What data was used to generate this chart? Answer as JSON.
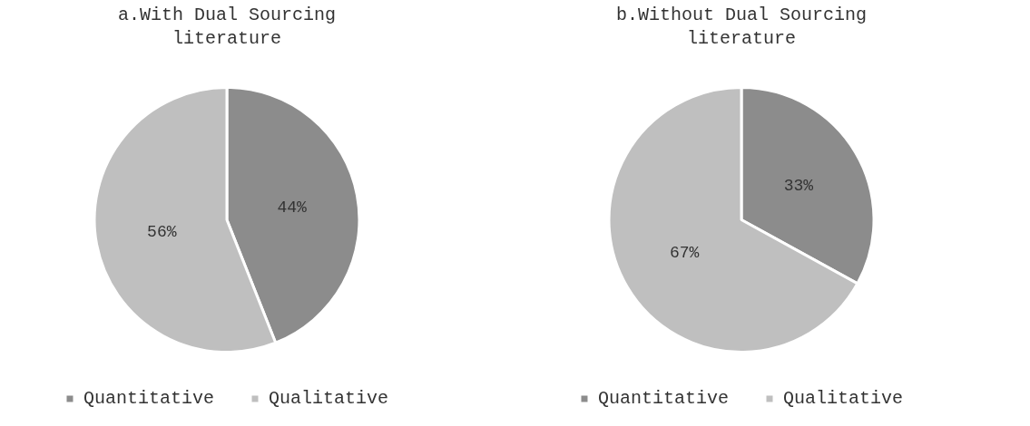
{
  "chart_data": [
    {
      "type": "pie",
      "title": "a.With Dual Sourcing literature",
      "categories": [
        "Quantitative",
        "Qualitative"
      ],
      "values": [
        44,
        56
      ],
      "value_labels": [
        "44%",
        "56%"
      ],
      "colors": [
        "#8c8c8c",
        "#bfbfbf"
      ],
      "legend": "bottom"
    },
    {
      "type": "pie",
      "title": "b.Without Dual Sourcing literature",
      "categories": [
        "Quantitative",
        "Qualitative"
      ],
      "values": [
        33,
        67
      ],
      "value_labels": [
        "33%",
        "67%"
      ],
      "colors": [
        "#8c8c8c",
        "#bfbfbf"
      ],
      "legend": "bottom"
    }
  ]
}
